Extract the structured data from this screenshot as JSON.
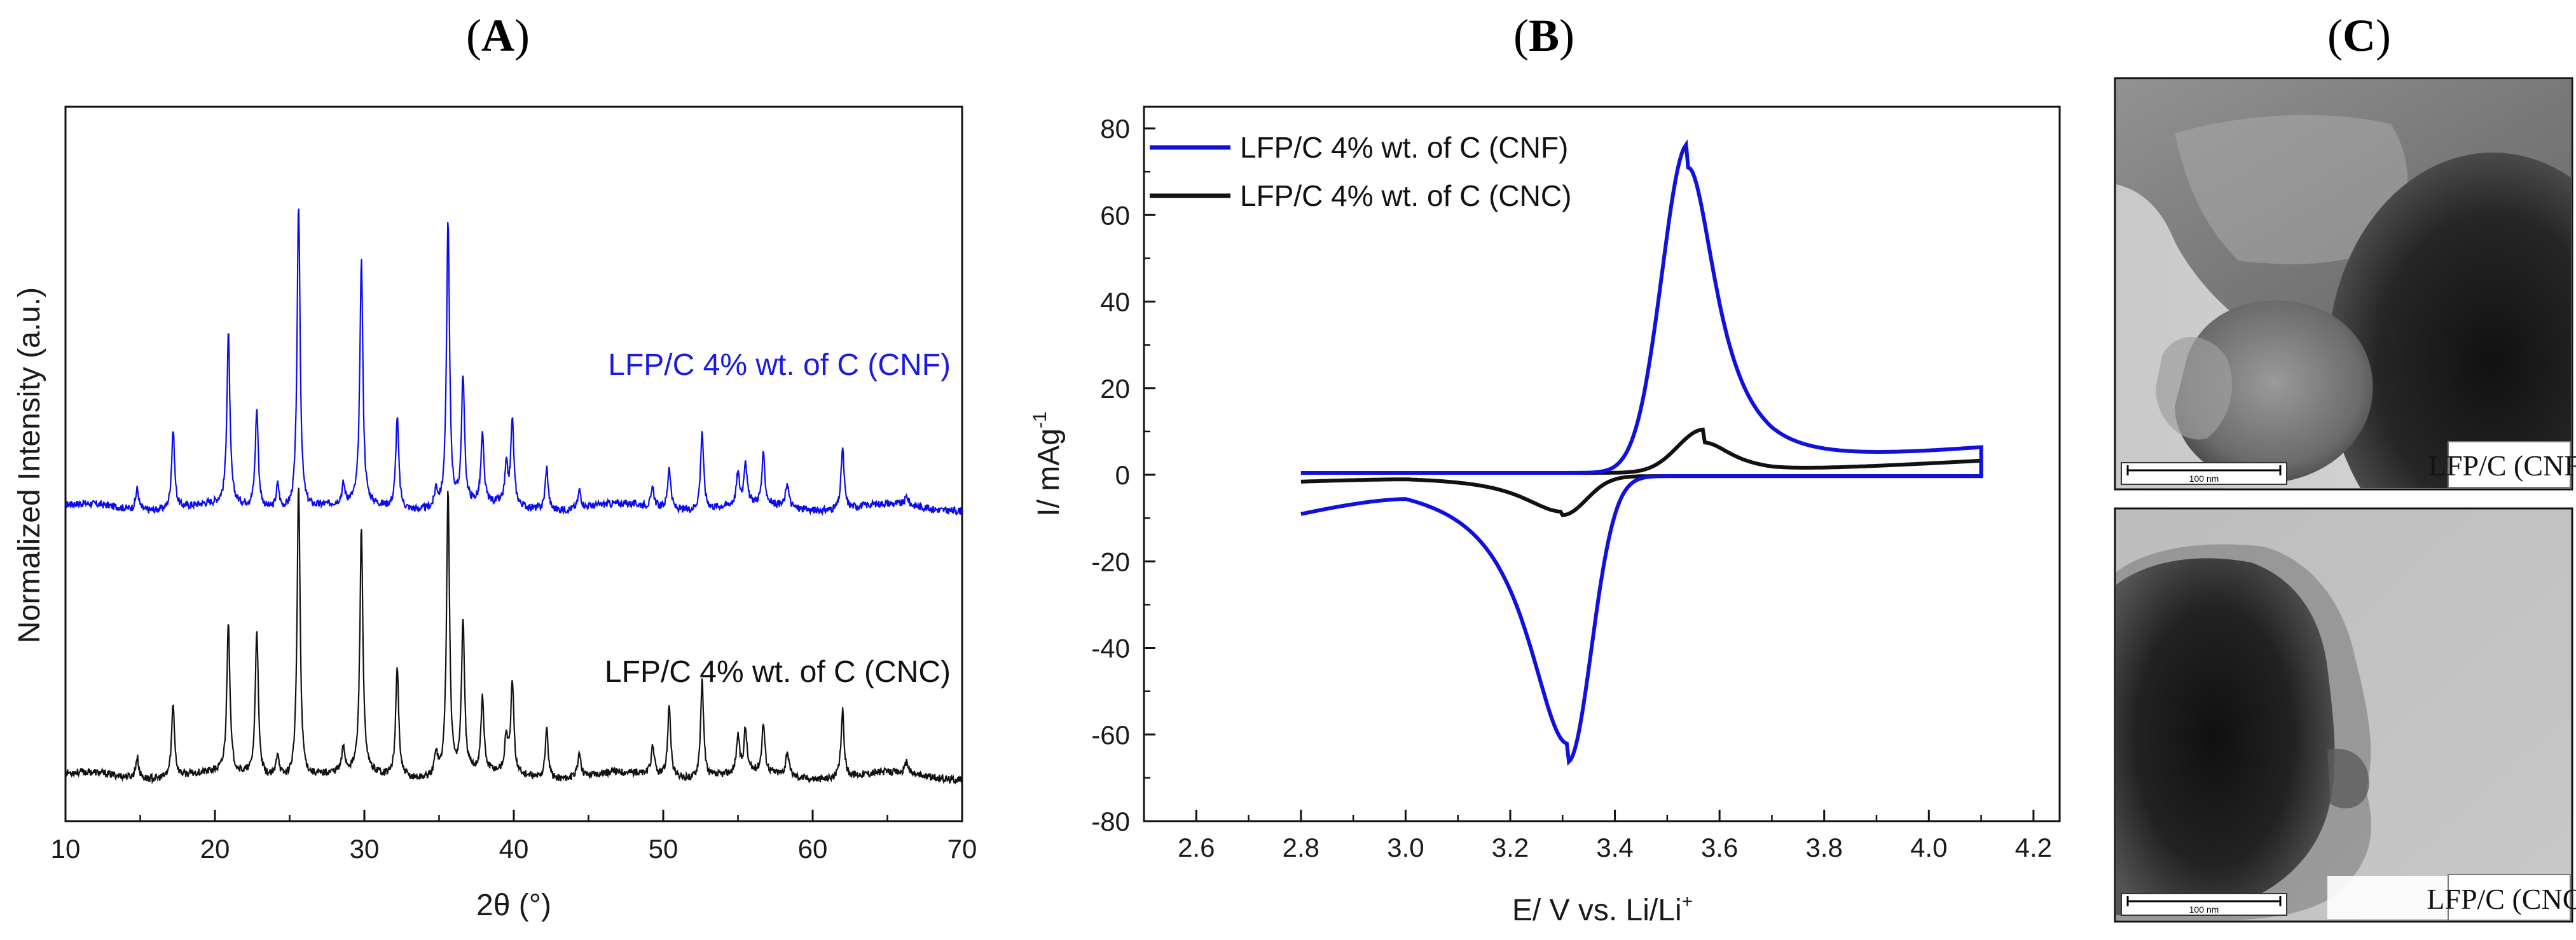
{
  "panels": {
    "a": "A",
    "b": "B",
    "c": "C"
  },
  "chart_data": [
    {
      "type": "line",
      "panel": "A",
      "title": "",
      "xlabel": "2θ (°)",
      "ylabel": "Normalized Intensity (a.u.)",
      "xlim": [
        10,
        70
      ],
      "xticks": [
        10,
        20,
        30,
        40,
        50,
        60,
        70
      ],
      "y_ticks_labeled": false,
      "series": [
        {
          "name": "LFP/C 4% wt. of C (CNF)",
          "color": "#0a0af0",
          "baseline": 0.44,
          "peaks": [
            [
              14.8,
              0.035
            ],
            [
              17.2,
              0.13
            ],
            [
              20.9,
              0.28
            ],
            [
              22.8,
              0.16
            ],
            [
              24.2,
              0.04
            ],
            [
              25.6,
              0.5
            ],
            [
              28.6,
              0.03
            ],
            [
              29.8,
              0.4
            ],
            [
              32.2,
              0.15
            ],
            [
              34.8,
              0.03
            ],
            [
              35.6,
              0.47
            ],
            [
              36.6,
              0.21
            ],
            [
              37.9,
              0.11
            ],
            [
              39.5,
              0.06
            ],
            [
              39.9,
              0.14
            ],
            [
              42.2,
              0.07
            ],
            [
              44.4,
              0.03
            ],
            [
              49.3,
              0.03
            ],
            [
              50.4,
              0.07
            ],
            [
              52.6,
              0.13
            ],
            [
              55.0,
              0.05
            ],
            [
              55.5,
              0.07
            ],
            [
              56.7,
              0.08
            ],
            [
              58.3,
              0.04
            ],
            [
              62.0,
              0.1
            ],
            [
              66.3,
              0.015
            ]
          ]
        },
        {
          "name": "LFP/C 4% wt. of C (CNC)",
          "color": "#111111",
          "baseline": 0.0,
          "peaks": [
            [
              14.8,
              0.035
            ],
            [
              17.2,
              0.12
            ],
            [
              20.9,
              0.25
            ],
            [
              22.8,
              0.24
            ],
            [
              24.2,
              0.04
            ],
            [
              25.6,
              0.48
            ],
            [
              28.6,
              0.04
            ],
            [
              29.8,
              0.4
            ],
            [
              32.2,
              0.18
            ],
            [
              34.8,
              0.04
            ],
            [
              35.6,
              0.47
            ],
            [
              36.6,
              0.25
            ],
            [
              37.9,
              0.12
            ],
            [
              39.5,
              0.06
            ],
            [
              39.9,
              0.15
            ],
            [
              42.2,
              0.08
            ],
            [
              44.4,
              0.04
            ],
            [
              49.3,
              0.05
            ],
            [
              50.4,
              0.12
            ],
            [
              52.6,
              0.16
            ],
            [
              55.0,
              0.06
            ],
            [
              55.5,
              0.07
            ],
            [
              56.7,
              0.08
            ],
            [
              58.3,
              0.04
            ],
            [
              62.0,
              0.11
            ],
            [
              66.3,
              0.02
            ]
          ]
        }
      ]
    },
    {
      "type": "line",
      "panel": "B",
      "title": "",
      "xlabel": "E/ V vs. Li/Li",
      "xlabel_sup": "+",
      "ylabel": "I/ mAg",
      "ylabel_sup": "-1",
      "xlim": [
        2.5,
        4.25
      ],
      "ylim": [
        -80,
        85
      ],
      "xticks": [
        2.6,
        2.8,
        3.0,
        3.2,
        3.4,
        3.6,
        3.8,
        4.0,
        4.2
      ],
      "yticks": [
        -80,
        -60,
        -40,
        -20,
        0,
        20,
        40,
        60,
        80
      ],
      "legend_position": "top-left",
      "series": [
        {
          "name": "LFP/C  4% wt. of C (CNF)",
          "color": "#1010e0",
          "potential_range": [
            2.8,
            4.1
          ],
          "anodic_peak": [
            3.54,
            76
          ],
          "cathodic_peak": [
            3.31,
            -66
          ],
          "endpoint_current": [
            6,
            -7
          ]
        },
        {
          "name": "LFP/C  4% wt. of C (CNC)",
          "color": "#111111",
          "potential_range": [
            2.8,
            4.1
          ],
          "anodic_peak": [
            3.57,
            10
          ],
          "cathodic_peak": [
            3.3,
            -9
          ],
          "endpoint_current": [
            3.5,
            -1.3
          ]
        }
      ]
    }
  ],
  "tem_images": [
    {
      "label": "LFP/C (CNF)",
      "scale_text": "100 nm"
    },
    {
      "label": "LFP/C (CNC)",
      "scale_text": "100 nm"
    }
  ]
}
